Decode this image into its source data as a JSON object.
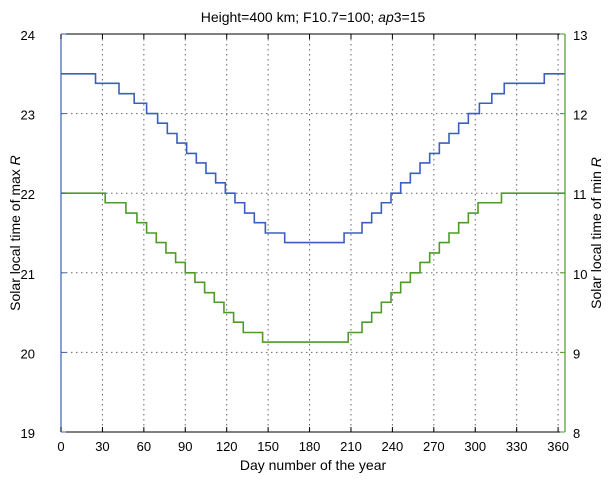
{
  "chart_data": {
    "type": "line",
    "title_parts": [
      "Height=400 km; F10.7=100; ",
      "ap",
      "3=15"
    ],
    "xlabel": "Day number of the year",
    "ylabel_left_parts": [
      "Solar local time of max ",
      "R"
    ],
    "ylabel_right_parts": [
      "Solar local time of min ",
      "R"
    ],
    "xlim": [
      0,
      365
    ],
    "ylim_left": [
      19,
      24
    ],
    "ylim_right": [
      8,
      13
    ],
    "x_ticks": [
      0,
      30,
      60,
      90,
      120,
      150,
      180,
      210,
      240,
      270,
      300,
      330,
      360
    ],
    "y_ticks_left": [
      19,
      20,
      21,
      22,
      23,
      24
    ],
    "y_ticks_right": [
      8,
      9,
      10,
      11,
      12,
      13
    ],
    "grid": true,
    "series": [
      {
        "color": "#3b5fc0",
        "axis": "left",
        "steps": [
          [
            0,
            23.5
          ],
          [
            25,
            23.38
          ],
          [
            42,
            23.25
          ],
          [
            53,
            23.13
          ],
          [
            62,
            23.0
          ],
          [
            70,
            22.88
          ],
          [
            77,
            22.75
          ],
          [
            84,
            22.63
          ],
          [
            91,
            22.5
          ],
          [
            98,
            22.38
          ],
          [
            105,
            22.25
          ],
          [
            112,
            22.13
          ],
          [
            119,
            22.0
          ],
          [
            126,
            21.88
          ],
          [
            133,
            21.75
          ],
          [
            140,
            21.63
          ],
          [
            148,
            21.5
          ],
          [
            162,
            21.38
          ],
          [
            205,
            21.5
          ],
          [
            218,
            21.63
          ],
          [
            225,
            21.75
          ],
          [
            232,
            21.88
          ],
          [
            239,
            22.0
          ],
          [
            246,
            22.13
          ],
          [
            253,
            22.25
          ],
          [
            260,
            22.38
          ],
          [
            267,
            22.5
          ],
          [
            274,
            22.63
          ],
          [
            281,
            22.75
          ],
          [
            288,
            22.88
          ],
          [
            295,
            23.0
          ],
          [
            303,
            23.13
          ],
          [
            312,
            23.25
          ],
          [
            321,
            23.38
          ],
          [
            350,
            23.5
          ],
          [
            365,
            23.5
          ]
        ]
      },
      {
        "color": "#4e9a2a",
        "axis": "right",
        "steps": [
          [
            0,
            11.0
          ],
          [
            32,
            10.88
          ],
          [
            47,
            10.75
          ],
          [
            55,
            10.63
          ],
          [
            62,
            10.5
          ],
          [
            69,
            10.38
          ],
          [
            76,
            10.25
          ],
          [
            83,
            10.13
          ],
          [
            90,
            10.0
          ],
          [
            97,
            9.88
          ],
          [
            104,
            9.75
          ],
          [
            111,
            9.63
          ],
          [
            118,
            9.5
          ],
          [
            125,
            9.38
          ],
          [
            132,
            9.25
          ],
          [
            146,
            9.13
          ],
          [
            160,
            9.13
          ],
          [
            198,
            9.13
          ],
          [
            208,
            9.25
          ],
          [
            218,
            9.38
          ],
          [
            225,
            9.5
          ],
          [
            232,
            9.63
          ],
          [
            239,
            9.75
          ],
          [
            246,
            9.88
          ],
          [
            253,
            10.0
          ],
          [
            260,
            10.13
          ],
          [
            267,
            10.25
          ],
          [
            274,
            10.38
          ],
          [
            281,
            10.5
          ],
          [
            288,
            10.63
          ],
          [
            295,
            10.75
          ],
          [
            302,
            10.88
          ],
          [
            319,
            11.0
          ],
          [
            365,
            11.0
          ]
        ]
      }
    ]
  },
  "colors": {
    "left_axis": "#3b5fc0",
    "right_axis": "#4e9a2a",
    "grid": "#666666"
  }
}
